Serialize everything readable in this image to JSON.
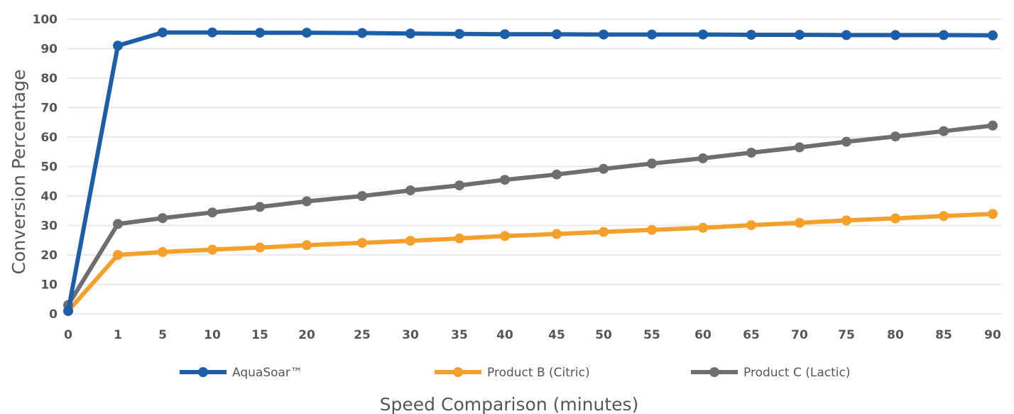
{
  "chart_data": {
    "type": "line",
    "title": "",
    "xlabel": "Speed Comparison (minutes)",
    "ylabel": "Conversion Percentage",
    "ylim": [
      0,
      100
    ],
    "yticks": [
      "0",
      "10",
      "20",
      "30",
      "40",
      "50",
      "60",
      "70",
      "80",
      "90",
      "100"
    ],
    "categories": [
      "0",
      "1",
      "5",
      "10",
      "15",
      "20",
      "25",
      "30",
      "35",
      "40",
      "45",
      "50",
      "55",
      "60",
      "65",
      "70",
      "75",
      "80",
      "85",
      "90"
    ],
    "grid": true,
    "legend_position": "bottom",
    "series": [
      {
        "name": "AquaSoar™",
        "color": "#1d5ea8",
        "values": [
          1,
          91,
          95.5,
          95.5,
          95.4,
          95.4,
          95.3,
          95.1,
          95.0,
          94.9,
          94.9,
          94.8,
          94.8,
          94.8,
          94.7,
          94.7,
          94.6,
          94.6,
          94.6,
          94.5
        ]
      },
      {
        "name": "Product B (Citric)",
        "color": "#f5a02b",
        "values": [
          1,
          20,
          21,
          21.8,
          22.5,
          23.3,
          24.1,
          24.8,
          25.6,
          26.4,
          27.1,
          27.8,
          28.5,
          29.2,
          30.1,
          30.9,
          31.7,
          32.4,
          33.2,
          33.9
        ]
      },
      {
        "name": "Product C (Lactic)",
        "color": "#6d6e71",
        "values": [
          3,
          30.5,
          32.5,
          34.4,
          36.3,
          38.2,
          40.0,
          41.9,
          43.6,
          45.5,
          47.3,
          49.2,
          51.0,
          52.8,
          54.7,
          56.5,
          58.4,
          60.2,
          62.0,
          63.9
        ]
      }
    ]
  }
}
